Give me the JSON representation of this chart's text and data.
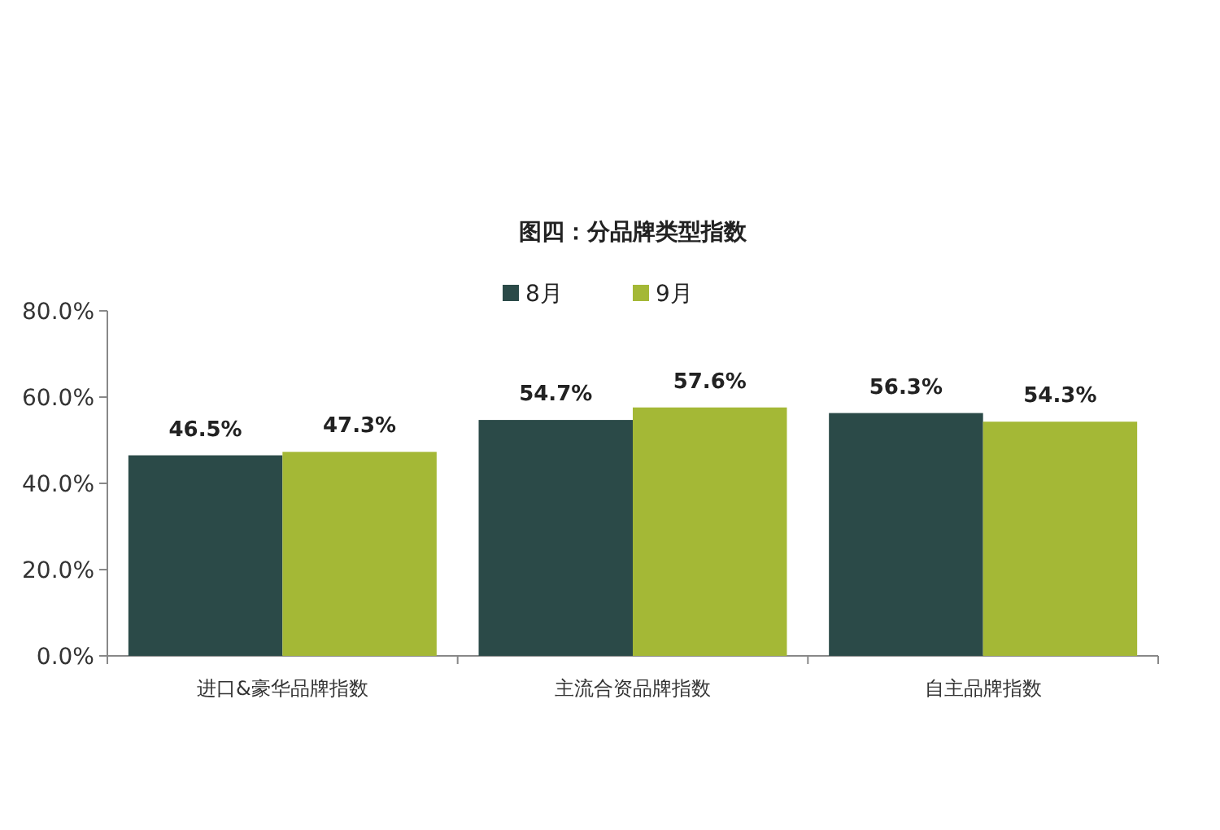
{
  "chart_data": {
    "type": "bar",
    "title": "图四：分品牌类型指数",
    "categories": [
      "进口&豪华品牌指数",
      "主流合资品牌指数",
      "自主品牌指数"
    ],
    "series": [
      {
        "name": "8月",
        "color": "#2b4a48",
        "values": [
          46.5,
          54.7,
          56.3
        ],
        "value_labels": [
          "46.5%",
          "54.7%",
          "56.3%"
        ]
      },
      {
        "name": "9月",
        "color": "#a4b836",
        "values": [
          47.3,
          57.6,
          54.3
        ],
        "value_labels": [
          "47.3%",
          "57.6%",
          "54.3%"
        ]
      }
    ],
    "ylim": [
      0,
      80
    ],
    "yticks": [
      {
        "value": 0,
        "label": "0.0%"
      },
      {
        "value": 20,
        "label": "20.0%"
      },
      {
        "value": 40,
        "label": "40.0%"
      },
      {
        "value": 60,
        "label": "60.0%"
      },
      {
        "value": 80,
        "label": "80.0%"
      }
    ],
    "grid": false,
    "legend": "top"
  }
}
